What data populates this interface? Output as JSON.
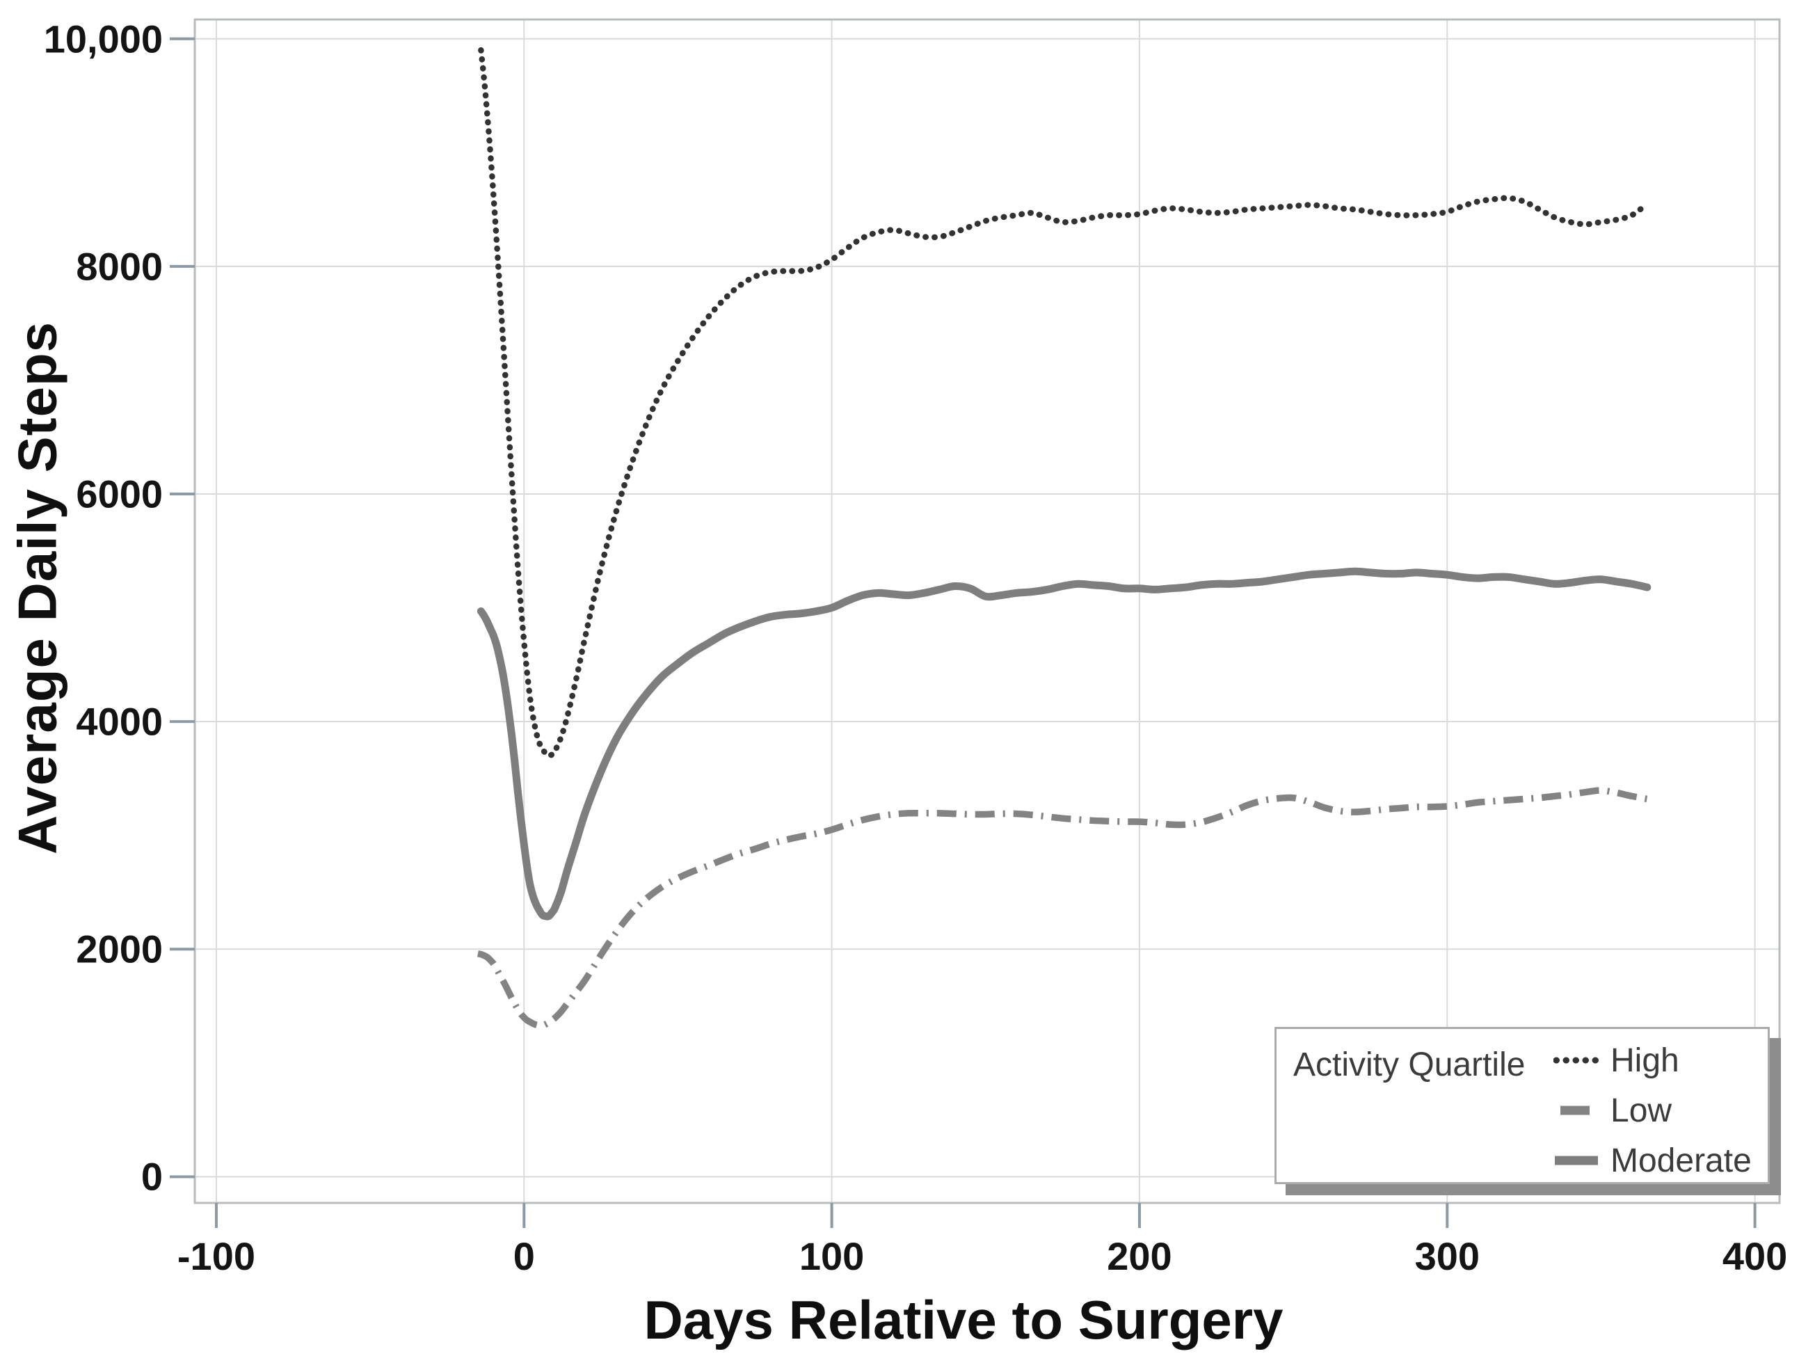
{
  "chart_data": {
    "type": "line",
    "title": "",
    "xlabel": "Days Relative to Surgery",
    "ylabel": "Average Daily Steps",
    "xlim": [
      -107,
      408
    ],
    "ylim": [
      -230,
      10170
    ],
    "grid": true,
    "legend_position": "inside bottom-right",
    "x_ticks": [
      -100,
      0,
      100,
      200,
      300,
      400
    ],
    "x_tick_labels": [
      "-100",
      "0",
      "100",
      "200",
      "300",
      "400"
    ],
    "y_ticks": [
      0,
      2000,
      4000,
      6000,
      8000,
      10000
    ],
    "y_tick_labels": [
      "0",
      "2000",
      "4000",
      "6000",
      "8000",
      "10,000"
    ],
    "series": [
      {
        "name": "High",
        "style": "dotted",
        "color": "#323232",
        "data": [
          [
            -14,
            9900
          ],
          [
            -13,
            9650
          ],
          [
            -12,
            9350
          ],
          [
            -11,
            9020
          ],
          [
            -10,
            8650
          ],
          [
            -9,
            8260
          ],
          [
            -8,
            7850
          ],
          [
            -7,
            7430
          ],
          [
            -6,
            7000
          ],
          [
            -5,
            6570
          ],
          [
            -4,
            6150
          ],
          [
            -3,
            5740
          ],
          [
            -2,
            5350
          ],
          [
            -1,
            5010
          ],
          [
            0,
            4700
          ],
          [
            1,
            4430
          ],
          [
            2,
            4200
          ],
          [
            3,
            4030
          ],
          [
            4,
            3900
          ],
          [
            5,
            3810
          ],
          [
            6,
            3760
          ],
          [
            7,
            3720
          ],
          [
            8,
            3700
          ],
          [
            9,
            3710
          ],
          [
            10,
            3740
          ],
          [
            12,
            3860
          ],
          [
            14,
            4040
          ],
          [
            17,
            4380
          ],
          [
            20,
            4760
          ],
          [
            25,
            5350
          ],
          [
            30,
            5850
          ],
          [
            35,
            6270
          ],
          [
            40,
            6630
          ],
          [
            45,
            6930
          ],
          [
            50,
            7170
          ],
          [
            55,
            7380
          ],
          [
            60,
            7560
          ],
          [
            65,
            7710
          ],
          [
            70,
            7830
          ],
          [
            75,
            7910
          ],
          [
            80,
            7950
          ],
          [
            85,
            7960
          ],
          [
            90,
            7960
          ],
          [
            95,
            7990
          ],
          [
            100,
            8060
          ],
          [
            105,
            8160
          ],
          [
            110,
            8250
          ],
          [
            115,
            8300
          ],
          [
            120,
            8320
          ],
          [
            125,
            8290
          ],
          [
            130,
            8260
          ],
          [
            135,
            8260
          ],
          [
            140,
            8300
          ],
          [
            145,
            8350
          ],
          [
            150,
            8400
          ],
          [
            155,
            8430
          ],
          [
            160,
            8450
          ],
          [
            165,
            8470
          ],
          [
            170,
            8430
          ],
          [
            175,
            8390
          ],
          [
            180,
            8400
          ],
          [
            185,
            8430
          ],
          [
            190,
            8450
          ],
          [
            195,
            8450
          ],
          [
            200,
            8460
          ],
          [
            205,
            8490
          ],
          [
            210,
            8510
          ],
          [
            215,
            8500
          ],
          [
            220,
            8480
          ],
          [
            225,
            8470
          ],
          [
            230,
            8480
          ],
          [
            235,
            8500
          ],
          [
            240,
            8510
          ],
          [
            245,
            8520
          ],
          [
            250,
            8530
          ],
          [
            255,
            8540
          ],
          [
            260,
            8530
          ],
          [
            265,
            8510
          ],
          [
            270,
            8500
          ],
          [
            275,
            8480
          ],
          [
            280,
            8460
          ],
          [
            285,
            8450
          ],
          [
            290,
            8450
          ],
          [
            295,
            8460
          ],
          [
            300,
            8480
          ],
          [
            305,
            8530
          ],
          [
            310,
            8570
          ],
          [
            315,
            8590
          ],
          [
            320,
            8600
          ],
          [
            325,
            8570
          ],
          [
            330,
            8500
          ],
          [
            335,
            8430
          ],
          [
            340,
            8390
          ],
          [
            345,
            8370
          ],
          [
            350,
            8390
          ],
          [
            355,
            8410
          ],
          [
            360,
            8450
          ],
          [
            365,
            8550
          ]
        ]
      },
      {
        "name": "Low",
        "style": "dashdot",
        "color": "#838383",
        "data": [
          [
            -15,
            1960
          ],
          [
            -14,
            1955
          ],
          [
            -13,
            1945
          ],
          [
            -12,
            1930
          ],
          [
            -11,
            1905
          ],
          [
            -10,
            1875
          ],
          [
            -9,
            1830
          ],
          [
            -8,
            1780
          ],
          [
            -7,
            1730
          ],
          [
            -6,
            1680
          ],
          [
            -5,
            1625
          ],
          [
            -4,
            1570
          ],
          [
            -3,
            1520
          ],
          [
            -2,
            1470
          ],
          [
            -1,
            1430
          ],
          [
            0,
            1400
          ],
          [
            1,
            1375
          ],
          [
            2,
            1360
          ],
          [
            3,
            1345
          ],
          [
            4,
            1335
          ],
          [
            5,
            1330
          ],
          [
            6,
            1330
          ],
          [
            7,
            1340
          ],
          [
            8,
            1355
          ],
          [
            9,
            1375
          ],
          [
            10,
            1395
          ],
          [
            12,
            1450
          ],
          [
            14,
            1520
          ],
          [
            17,
            1625
          ],
          [
            20,
            1735
          ],
          [
            25,
            1950
          ],
          [
            30,
            2150
          ],
          [
            35,
            2320
          ],
          [
            40,
            2450
          ],
          [
            45,
            2550
          ],
          [
            50,
            2625
          ],
          [
            55,
            2685
          ],
          [
            60,
            2735
          ],
          [
            65,
            2790
          ],
          [
            70,
            2840
          ],
          [
            75,
            2880
          ],
          [
            80,
            2925
          ],
          [
            85,
            2960
          ],
          [
            90,
            2990
          ],
          [
            95,
            3015
          ],
          [
            100,
            3050
          ],
          [
            105,
            3095
          ],
          [
            110,
            3135
          ],
          [
            115,
            3165
          ],
          [
            120,
            3185
          ],
          [
            125,
            3195
          ],
          [
            130,
            3195
          ],
          [
            135,
            3195
          ],
          [
            140,
            3190
          ],
          [
            145,
            3185
          ],
          [
            150,
            3185
          ],
          [
            155,
            3190
          ],
          [
            160,
            3190
          ],
          [
            165,
            3180
          ],
          [
            170,
            3165
          ],
          [
            175,
            3150
          ],
          [
            180,
            3140
          ],
          [
            185,
            3130
          ],
          [
            190,
            3125
          ],
          [
            195,
            3120
          ],
          [
            200,
            3120
          ],
          [
            205,
            3110
          ],
          [
            210,
            3095
          ],
          [
            215,
            3095
          ],
          [
            220,
            3115
          ],
          [
            225,
            3155
          ],
          [
            230,
            3205
          ],
          [
            235,
            3265
          ],
          [
            240,
            3305
          ],
          [
            245,
            3325
          ],
          [
            250,
            3330
          ],
          [
            255,
            3295
          ],
          [
            260,
            3245
          ],
          [
            265,
            3215
          ],
          [
            270,
            3205
          ],
          [
            275,
            3215
          ],
          [
            280,
            3230
          ],
          [
            285,
            3240
          ],
          [
            290,
            3250
          ],
          [
            295,
            3250
          ],
          [
            300,
            3255
          ],
          [
            305,
            3270
          ],
          [
            310,
            3290
          ],
          [
            315,
            3300
          ],
          [
            320,
            3310
          ],
          [
            325,
            3320
          ],
          [
            330,
            3330
          ],
          [
            335,
            3345
          ],
          [
            340,
            3360
          ],
          [
            345,
            3380
          ],
          [
            350,
            3395
          ],
          [
            355,
            3375
          ],
          [
            360,
            3345
          ],
          [
            365,
            3320
          ]
        ]
      },
      {
        "name": "Moderate",
        "style": "solid",
        "color": "#7e7e7e",
        "data": [
          [
            -14,
            4970
          ],
          [
            -13,
            4930
          ],
          [
            -12,
            4880
          ],
          [
            -11,
            4820
          ],
          [
            -10,
            4760
          ],
          [
            -9,
            4680
          ],
          [
            -8,
            4570
          ],
          [
            -7,
            4440
          ],
          [
            -6,
            4280
          ],
          [
            -5,
            4090
          ],
          [
            -4,
            3880
          ],
          [
            -3,
            3640
          ],
          [
            -2,
            3380
          ],
          [
            -1,
            3140
          ],
          [
            0,
            2920
          ],
          [
            1,
            2720
          ],
          [
            2,
            2560
          ],
          [
            3,
            2460
          ],
          [
            4,
            2390
          ],
          [
            5,
            2340
          ],
          [
            6,
            2300
          ],
          [
            7,
            2290
          ],
          [
            8,
            2290
          ],
          [
            9,
            2320
          ],
          [
            10,
            2360
          ],
          [
            12,
            2500
          ],
          [
            14,
            2690
          ],
          [
            17,
            2950
          ],
          [
            20,
            3210
          ],
          [
            25,
            3560
          ],
          [
            30,
            3850
          ],
          [
            35,
            4070
          ],
          [
            40,
            4250
          ],
          [
            45,
            4400
          ],
          [
            50,
            4510
          ],
          [
            55,
            4610
          ],
          [
            60,
            4690
          ],
          [
            65,
            4770
          ],
          [
            70,
            4830
          ],
          [
            75,
            4880
          ],
          [
            80,
            4920
          ],
          [
            85,
            4940
          ],
          [
            90,
            4950
          ],
          [
            95,
            4970
          ],
          [
            100,
            5000
          ],
          [
            105,
            5060
          ],
          [
            110,
            5110
          ],
          [
            115,
            5130
          ],
          [
            120,
            5120
          ],
          [
            125,
            5110
          ],
          [
            130,
            5130
          ],
          [
            135,
            5160
          ],
          [
            140,
            5190
          ],
          [
            145,
            5170
          ],
          [
            150,
            5100
          ],
          [
            155,
            5110
          ],
          [
            160,
            5130
          ],
          [
            165,
            5140
          ],
          [
            170,
            5160
          ],
          [
            175,
            5190
          ],
          [
            180,
            5210
          ],
          [
            185,
            5200
          ],
          [
            190,
            5190
          ],
          [
            195,
            5170
          ],
          [
            200,
            5170
          ],
          [
            205,
            5160
          ],
          [
            210,
            5170
          ],
          [
            215,
            5180
          ],
          [
            220,
            5200
          ],
          [
            225,
            5210
          ],
          [
            230,
            5210
          ],
          [
            235,
            5220
          ],
          [
            240,
            5230
          ],
          [
            245,
            5250
          ],
          [
            250,
            5270
          ],
          [
            255,
            5290
          ],
          [
            260,
            5300
          ],
          [
            265,
            5310
          ],
          [
            270,
            5320
          ],
          [
            275,
            5310
          ],
          [
            280,
            5300
          ],
          [
            285,
            5300
          ],
          [
            290,
            5310
          ],
          [
            295,
            5300
          ],
          [
            300,
            5290
          ],
          [
            305,
            5270
          ],
          [
            310,
            5260
          ],
          [
            315,
            5270
          ],
          [
            320,
            5270
          ],
          [
            325,
            5250
          ],
          [
            330,
            5230
          ],
          [
            335,
            5210
          ],
          [
            340,
            5220
          ],
          [
            345,
            5240
          ],
          [
            350,
            5250
          ],
          [
            355,
            5230
          ],
          [
            360,
            5210
          ],
          [
            365,
            5180
          ]
        ]
      }
    ]
  },
  "legend": {
    "title": "Activity Quartile",
    "items": [
      {
        "label": "High",
        "series": "High"
      },
      {
        "label": "Low",
        "series": "Low"
      },
      {
        "label": "Moderate",
        "series": "Moderate"
      }
    ]
  },
  "colors": {
    "background": "#ffffff",
    "frame": "#b9bcbe",
    "gridline": "#d8dadb",
    "tick_mark": "#8d99a3",
    "tick_text": "#141414",
    "axis_title_text": "#0f0f0f",
    "legend_border": "#ababab",
    "legend_shadow": "#8d8d8d",
    "legend_text": "#3b3b3b"
  }
}
